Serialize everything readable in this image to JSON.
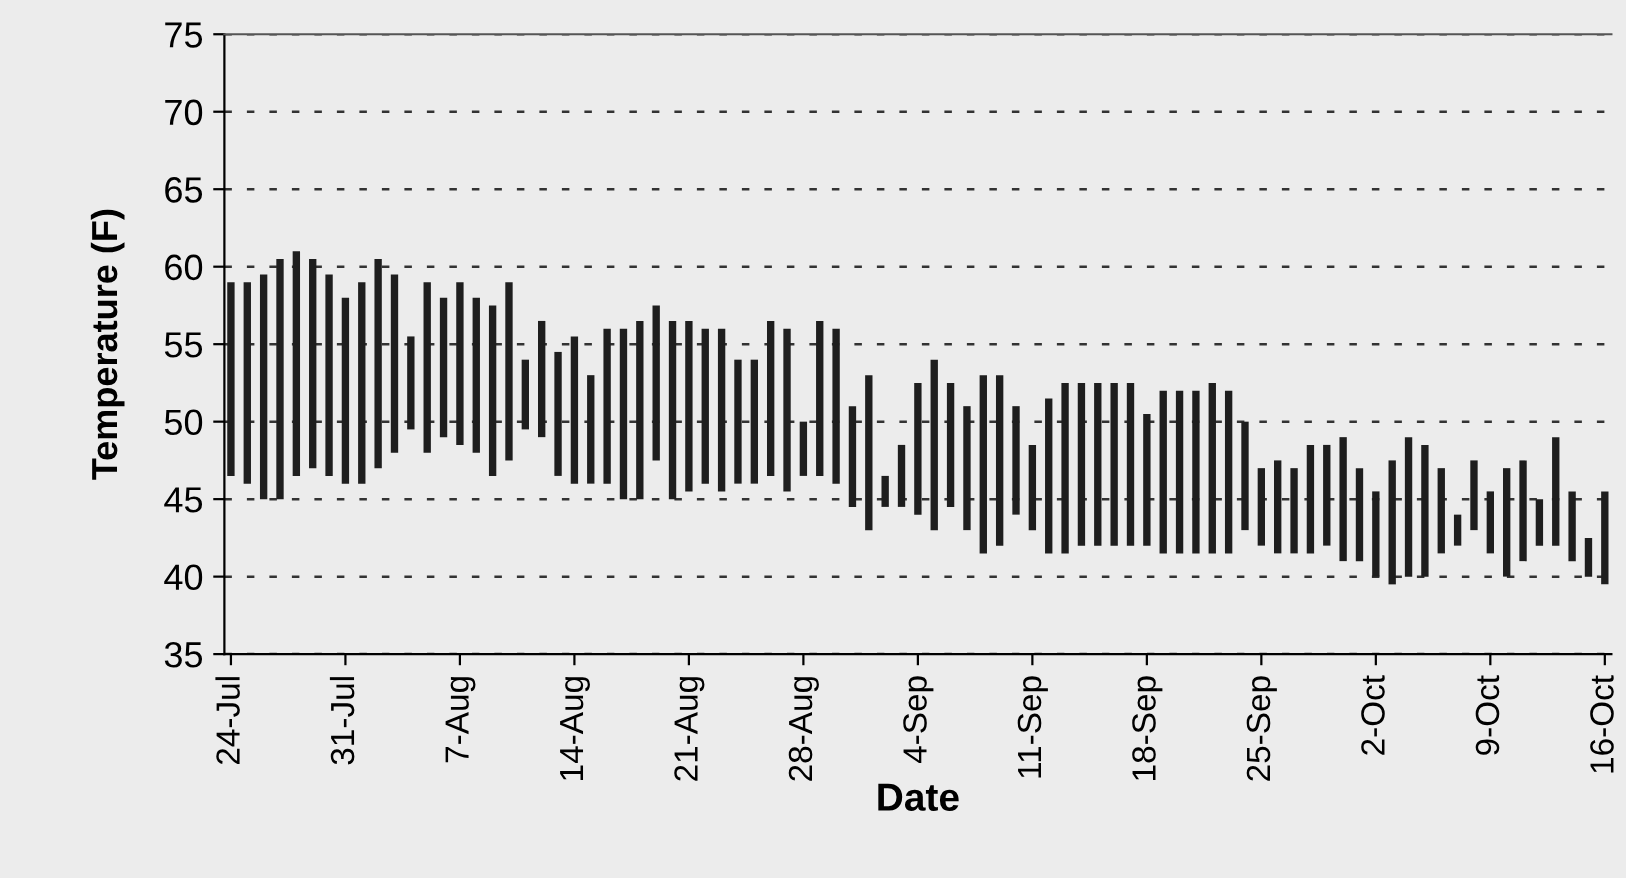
{
  "chart_data": {
    "type": "bar",
    "xlabel": "Date",
    "ylabel": "Temperature (F)",
    "categories": [
      "24-Jul",
      null,
      null,
      null,
      null,
      null,
      null,
      "31-Jul",
      null,
      null,
      null,
      null,
      null,
      null,
      "7-Aug",
      null,
      null,
      null,
      null,
      null,
      null,
      "14-Aug",
      null,
      null,
      null,
      null,
      null,
      null,
      "21-Aug",
      null,
      null,
      null,
      null,
      null,
      null,
      "28-Aug",
      null,
      null,
      null,
      null,
      null,
      null,
      "4-Sep",
      null,
      null,
      null,
      null,
      null,
      null,
      "11-Sep",
      null,
      null,
      null,
      null,
      null,
      null,
      "18-Sep",
      null,
      null,
      null,
      null,
      null,
      null,
      "25-Sep",
      null,
      null,
      null,
      null,
      null,
      null,
      "2-Oct",
      null,
      null,
      null,
      null,
      null,
      null,
      "9-Oct",
      null,
      null,
      null,
      null,
      null,
      null,
      "16-Oct"
    ],
    "base": [
      46.5,
      46,
      45,
      45,
      46.5,
      47,
      46.5,
      46,
      46,
      47,
      48,
      49.5,
      48,
      49,
      48.5,
      48,
      46.5,
      47.5,
      49.5,
      49,
      46.5,
      46,
      46,
      46,
      45,
      45,
      47.5,
      45,
      45.5,
      46,
      45.5,
      46,
      46,
      46.5,
      45.5,
      46.5,
      46.5,
      46,
      44.5,
      43,
      44.5,
      44.5,
      44,
      43,
      44.5,
      43,
      41.5,
      42,
      44,
      43,
      41.5,
      41.5,
      42,
      42,
      42,
      42,
      42,
      41.5,
      41.5,
      41.5,
      41.5,
      41.5,
      43,
      42,
      41.5,
      41.5,
      41.5,
      42,
      41,
      41,
      40,
      39.5,
      40,
      40,
      41.5,
      42,
      43,
      41.5,
      40,
      41,
      42,
      42,
      41,
      40,
      39.5
    ],
    "values": [
      12.5,
      13,
      14.5,
      15.5,
      14.5,
      13.5,
      13,
      12,
      13,
      13.5,
      11.5,
      6,
      11,
      9,
      10.5,
      10,
      11,
      11.5,
      4.5,
      7.5,
      8,
      9.5,
      7,
      10,
      11,
      11.5,
      10,
      11.5,
      11,
      10,
      10.5,
      8,
      8,
      10,
      10.5,
      3.5,
      10,
      10,
      6.5,
      10,
      2,
      4,
      8.5,
      11,
      8,
      8,
      11.5,
      11,
      7,
      5.5,
      10,
      11,
      10.5,
      10.5,
      10.5,
      10.5,
      8.5,
      10.5,
      10.5,
      10.5,
      11,
      10.5,
      7,
      5,
      6,
      5.5,
      7,
      6.5,
      8,
      6,
      5.5,
      8,
      9,
      8.5,
      5.5,
      2,
      4.5,
      4,
      7,
      6.5,
      3,
      7,
      4.5,
      2.5,
      6
    ],
    "color": "#1e1e1e",
    "ylim": [
      35,
      75
    ],
    "yticks": [
      35,
      40,
      45,
      50,
      55,
      60,
      65,
      70,
      75
    ],
    "grid": "y",
    "line_style": "dashed",
    "legend": false
  }
}
